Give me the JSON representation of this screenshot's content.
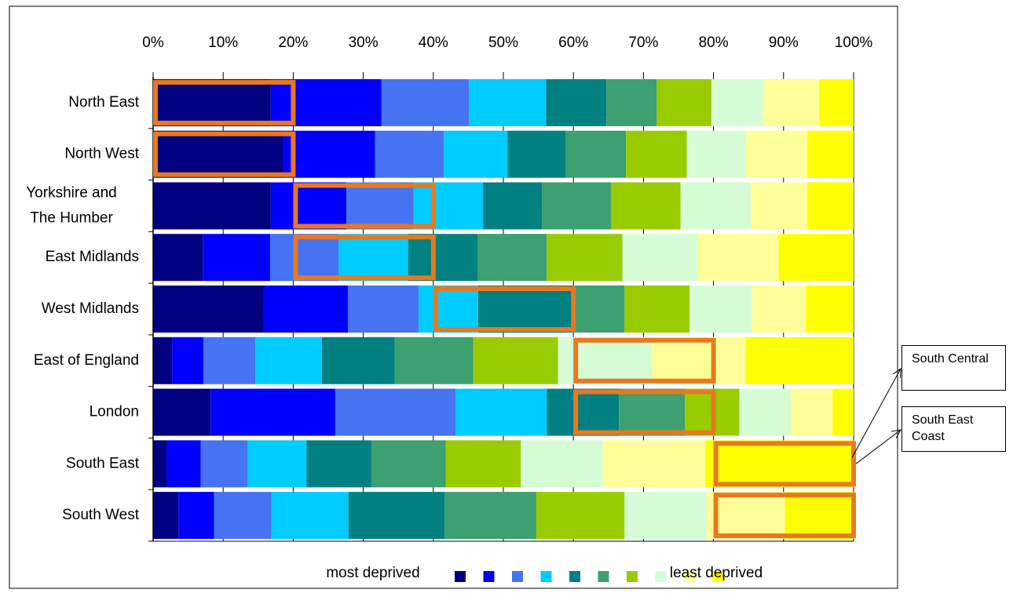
{
  "chart_data": {
    "type": "stacked-bar-horizontal",
    "categories": [
      "North East",
      "North West",
      "Yorkshire and The Humber",
      "East Midlands",
      "West Midlands",
      "East of England",
      "London",
      "South East",
      "South West"
    ],
    "series": [
      {
        "color": "#000080",
        "values": [
          16.8,
          18.5,
          16.8,
          7.1,
          15.8,
          2.7,
          8.2,
          1.9,
          3.6
        ]
      },
      {
        "color": "#0000ff",
        "values": [
          15.8,
          13.2,
          10.8,
          9.6,
          12.0,
          4.5,
          17.8,
          4.9,
          5.1
        ]
      },
      {
        "color": "#4573f2",
        "values": [
          12.5,
          9.8,
          9.6,
          9.8,
          10.1,
          7.4,
          17.2,
          6.7,
          8.2
        ]
      },
      {
        "color": "#00ccff",
        "values": [
          11.0,
          9.1,
          9.9,
          9.9,
          8.5,
          9.5,
          13.0,
          8.4,
          11.0
        ]
      },
      {
        "color": "#008080",
        "values": [
          8.6,
          8.3,
          8.4,
          9.9,
          13.4,
          10.4,
          10.3,
          9.3,
          13.7
        ]
      },
      {
        "color": "#3ca070",
        "values": [
          7.2,
          8.6,
          9.9,
          9.9,
          7.5,
          11.2,
          9.4,
          10.6,
          13.1
        ]
      },
      {
        "color": "#99cc00",
        "values": [
          7.8,
          8.7,
          9.9,
          10.8,
          9.3,
          12.1,
          7.8,
          10.7,
          12.6
        ]
      },
      {
        "color": "#d6fcd6",
        "values": [
          7.4,
          8.4,
          10.0,
          10.7,
          8.9,
          13.4,
          7.3,
          11.7,
          11.7
        ]
      },
      {
        "color": "#ffff99",
        "values": [
          8.0,
          8.8,
          8.1,
          11.6,
          7.7,
          13.4,
          6.0,
          14.6,
          11.2
        ]
      },
      {
        "color": "#ffff00",
        "values": [
          4.9,
          6.6,
          6.6,
          10.7,
          6.8,
          15.4,
          3.0,
          21.2,
          9.8
        ]
      }
    ],
    "xlim": [
      0,
      100
    ],
    "xticks": [
      {
        "value": 0,
        "label": "0%"
      },
      {
        "value": 10,
        "label": "10%"
      },
      {
        "value": 20,
        "label": "20%"
      },
      {
        "value": 30,
        "label": "30%"
      },
      {
        "value": 40,
        "label": "40%"
      },
      {
        "value": 50,
        "label": "50%"
      },
      {
        "value": 60,
        "label": "60%"
      },
      {
        "value": 70,
        "label": "70%"
      },
      {
        "value": 80,
        "label": "80%"
      },
      {
        "value": 90,
        "label": "90%"
      },
      {
        "value": 100,
        "label": "100%"
      }
    ],
    "grid": true,
    "legend_start": "most deprived",
    "legend_end": "least deprived",
    "highlight_color": "#e8791e",
    "highlights": [
      {
        "category": 0,
        "range": [
          0,
          20
        ]
      },
      {
        "category": 1,
        "range": [
          0,
          20
        ]
      },
      {
        "category": 2,
        "range": [
          20,
          40
        ]
      },
      {
        "category": 3,
        "range": [
          20,
          40
        ]
      },
      {
        "category": 4,
        "range": [
          40,
          60
        ]
      },
      {
        "category": 5,
        "range": [
          60,
          80
        ]
      },
      {
        "category": 6,
        "range": [
          60,
          80
        ]
      },
      {
        "category": 7,
        "range": [
          80,
          100
        ]
      },
      {
        "category": 8,
        "range": [
          80,
          100
        ]
      }
    ],
    "annotations": [
      {
        "text": "South Central",
        "category": 7
      },
      {
        "text": "South East Coast",
        "category": 7
      }
    ]
  }
}
